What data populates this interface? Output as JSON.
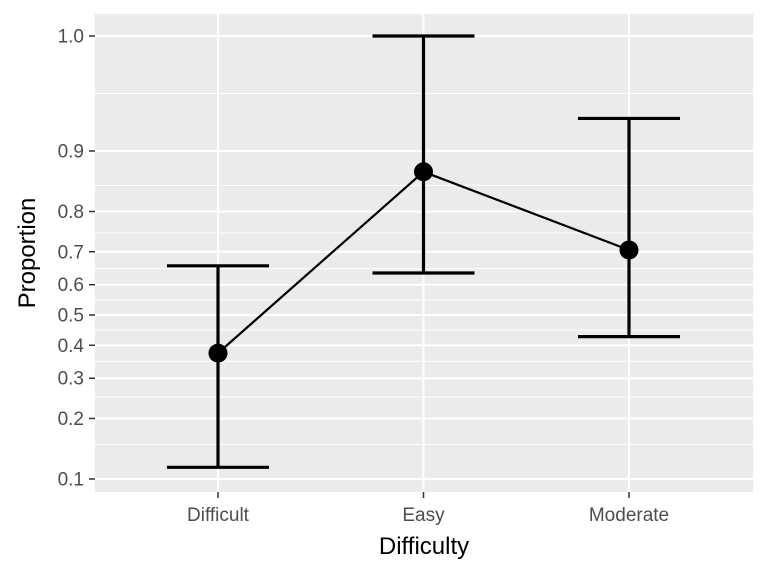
{
  "chart_data": {
    "type": "line",
    "title": "",
    "xlabel": "Difficulty",
    "ylabel": "Proportion",
    "y_scale": "logit",
    "categories": [
      "Difficult",
      "Easy",
      "Moderate"
    ],
    "y_ticks": [
      0.1,
      0.2,
      0.3,
      0.4,
      0.5,
      0.6,
      0.7,
      0.8,
      0.9,
      1.0
    ],
    "y_tick_labels": [
      "0.1",
      "0.2",
      "0.3",
      "0.4",
      "0.5",
      "0.6",
      "0.7",
      "0.8",
      "0.9",
      "1.0"
    ],
    "ylim": [
      0.09,
      1.0
    ],
    "grid": true,
    "legend": "none",
    "series": [
      {
        "values": [
          0.375,
          0.872,
          0.705
        ],
        "lower": [
          0.115,
          0.637,
          0.428
        ],
        "upper": [
          0.659,
          1.0,
          0.933
        ]
      }
    ]
  }
}
